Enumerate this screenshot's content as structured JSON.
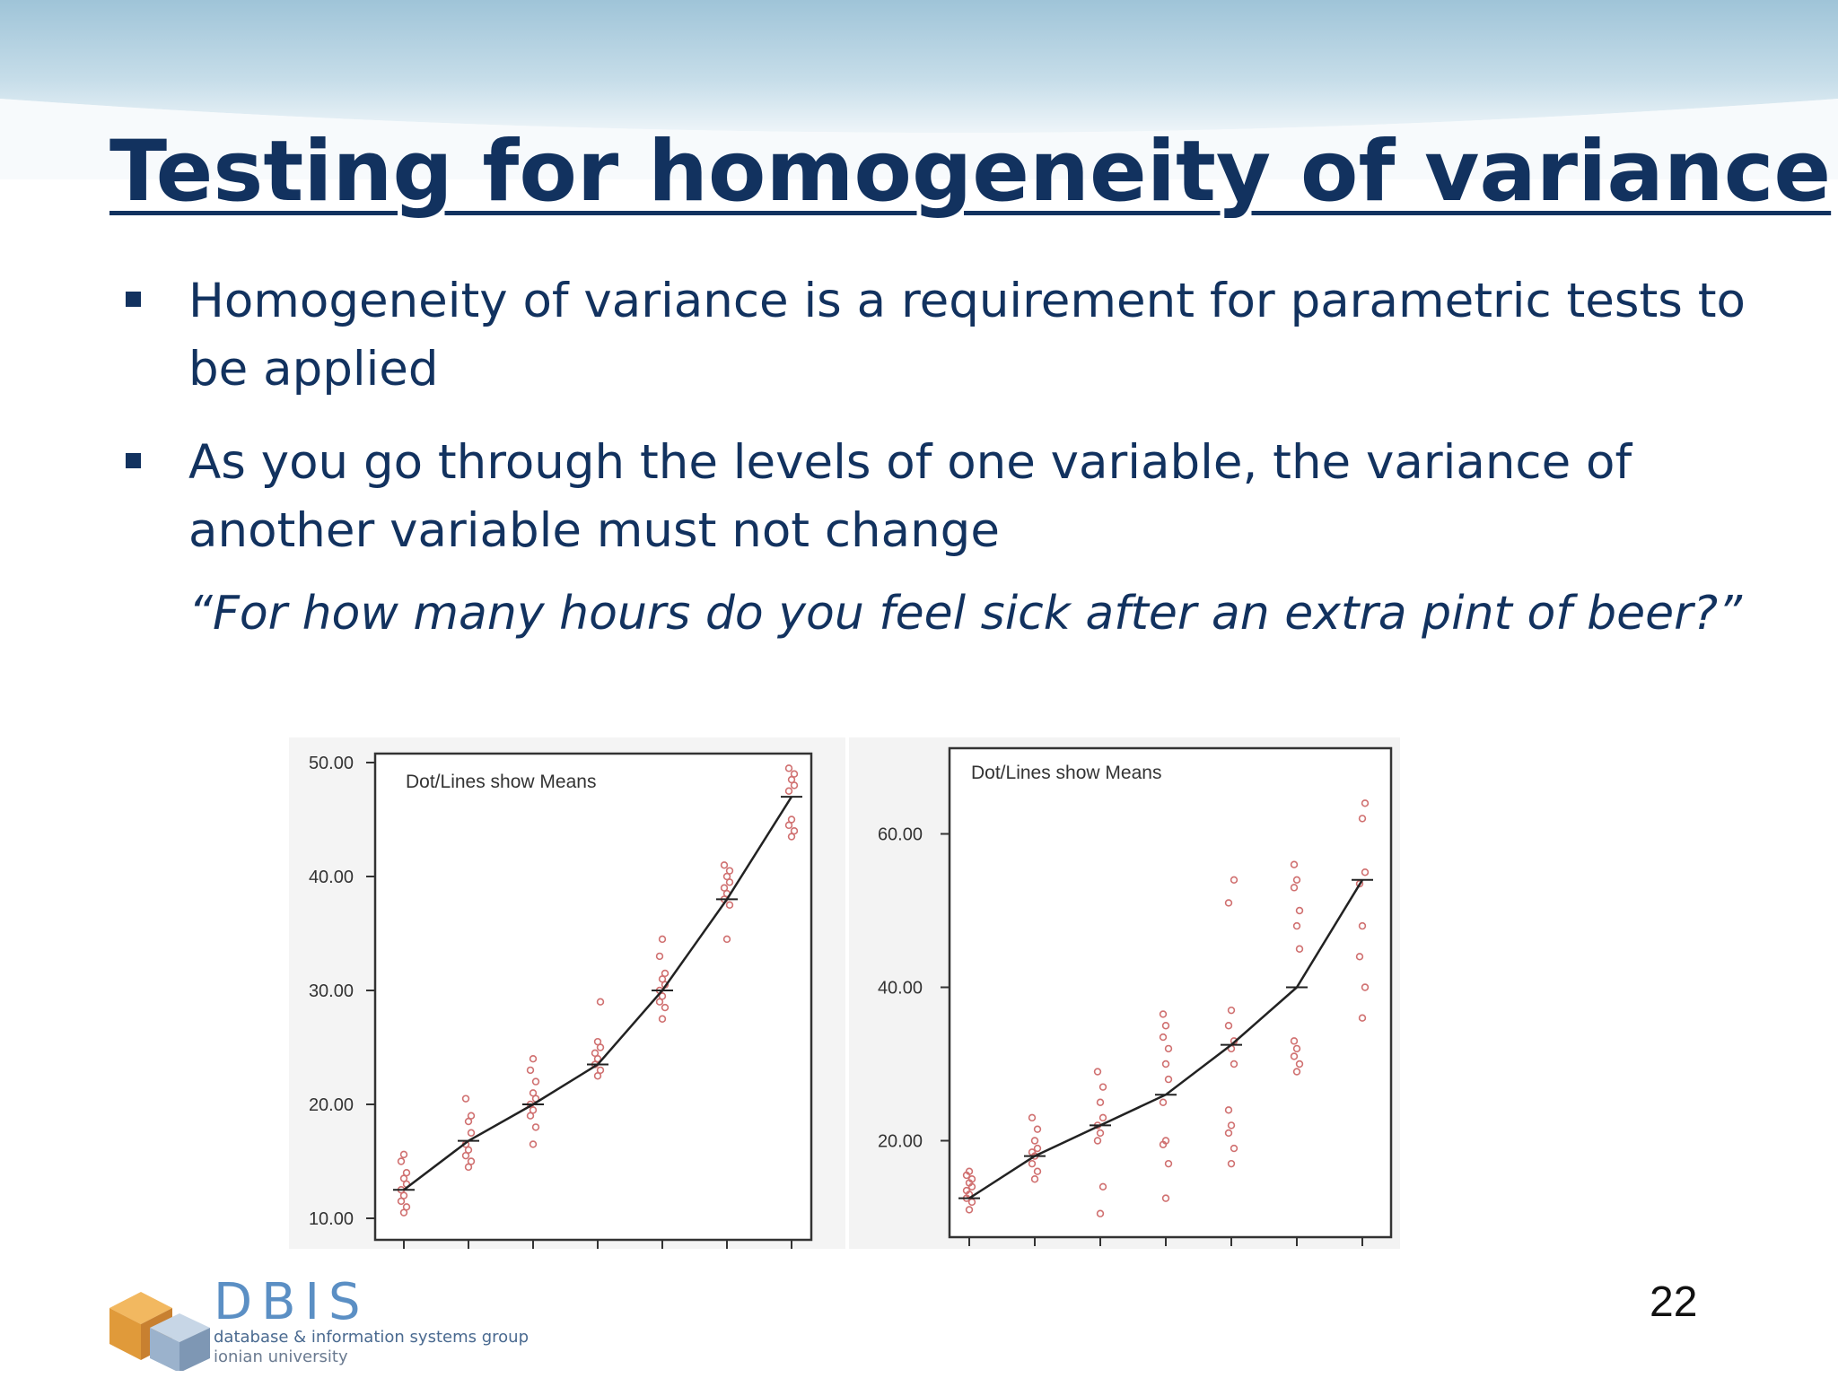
{
  "slide": {
    "title": "Testing for homogeneity of variance",
    "bullets": [
      "Homogeneity of variance is a requirement for parametric tests to be applied",
      "As you go through the levels of one variable, the variance of another variable must not change"
    ],
    "quote": "“For how many hours do you feel sick after an extra pint of beer?”",
    "page_number": "22"
  },
  "logo": {
    "name": "DBIS",
    "line1": "database & information systems group",
    "line2": "ionian university",
    "colors": [
      "#e8a040",
      "#5b8fc4"
    ]
  },
  "chart_data": [
    {
      "type": "scatter",
      "annotation": "Dot/Lines show Means",
      "ylim": [
        10,
        50
      ],
      "yticks": [
        "50.00",
        "40.00",
        "30.00",
        "20.00",
        "10.00"
      ],
      "x": [
        1,
        2,
        3,
        4,
        5,
        6,
        7
      ],
      "means": [
        12.5,
        16.8,
        20.0,
        23.5,
        30.0,
        38.0,
        47.0
      ],
      "points": [
        [
          10.5,
          11.0,
          11.5,
          12.0,
          12.5,
          13.0,
          13.5,
          14.0,
          15.0,
          15.6
        ],
        [
          14.5,
          15.0,
          15.5,
          16.0,
          16.5,
          17.5,
          18.5,
          19.0,
          20.5
        ],
        [
          16.5,
          18.0,
          19.0,
          19.5,
          20.0,
          20.5,
          21.0,
          22.0,
          23.0,
          24.0
        ],
        [
          22.5,
          23.0,
          23.5,
          24.0,
          24.5,
          25.0,
          25.5,
          29.0
        ],
        [
          27.5,
          28.5,
          29.0,
          29.5,
          30.0,
          30.5,
          31.0,
          31.5,
          33.0,
          34.5
        ],
        [
          34.5,
          37.5,
          38.0,
          38.5,
          39.0,
          39.5,
          40.0,
          40.5,
          41.0
        ],
        [
          43.5,
          44.0,
          44.5,
          45.0,
          47.5,
          48.0,
          48.5,
          49.0,
          49.5
        ]
      ],
      "colors": {
        "points": "#d07070",
        "line": "#222222"
      }
    },
    {
      "type": "scatter",
      "annotation": "Dot/Lines show Means",
      "ylim": [
        10,
        70
      ],
      "yticks": [
        "60.00",
        "40.00",
        "20.00"
      ],
      "x": [
        1,
        2,
        3,
        4,
        5,
        6,
        7
      ],
      "means": [
        12.5,
        18.0,
        22.0,
        26.0,
        32.5,
        40.0,
        54.0
      ],
      "points": [
        [
          11.0,
          12.0,
          12.5,
          13.0,
          13.5,
          14.0,
          14.5,
          15.0,
          15.5,
          16.0
        ],
        [
          15.0,
          16.0,
          17.0,
          18.0,
          18.5,
          19.0,
          20.0,
          21.5,
          23.0
        ],
        [
          10.5,
          14.0,
          20.0,
          21.0,
          22.0,
          23.0,
          25.0,
          27.0,
          29.0
        ],
        [
          12.5,
          17.0,
          19.5,
          20.0,
          25.0,
          28.0,
          30.0,
          32.0,
          33.5,
          35.0,
          36.5
        ],
        [
          17.0,
          19.0,
          21.0,
          22.0,
          24.0,
          30.0,
          32.0,
          33.0,
          35.0,
          37.0,
          51.0,
          54.0
        ],
        [
          29.0,
          30.0,
          31.0,
          32.0,
          33.0,
          45.0,
          48.0,
          50.0,
          53.0,
          54.0,
          56.0
        ],
        [
          36.0,
          40.0,
          44.0,
          48.0,
          53.5,
          55.0,
          62.0,
          64.0
        ]
      ],
      "colors": {
        "points": "#d07070",
        "line": "#222222"
      }
    }
  ]
}
